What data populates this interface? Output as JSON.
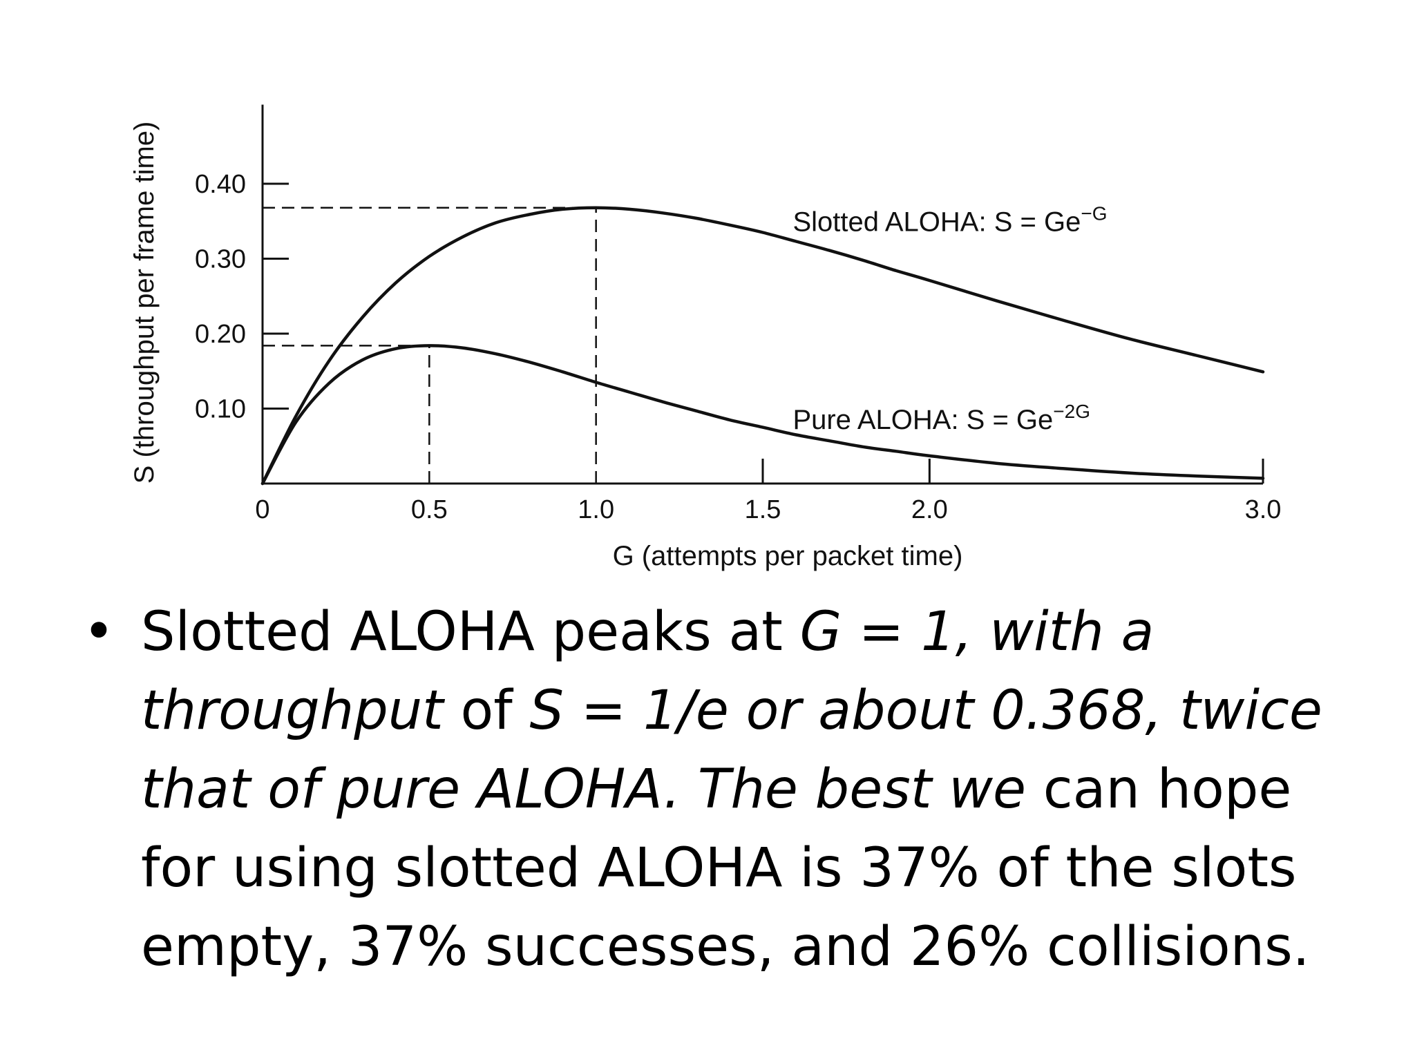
{
  "chart_data": {
    "type": "line",
    "xlabel": "G (attempts per packet time)",
    "ylabel": "S (throughput per frame time)",
    "xlim": [
      0,
      3.0
    ],
    "ylim": [
      0,
      0.5
    ],
    "x_ticks": [
      {
        "value": 0,
        "label": "0"
      },
      {
        "value": 0.5,
        "label": "0.5"
      },
      {
        "value": 1.0,
        "label": "1.0"
      },
      {
        "value": 1.5,
        "label": "1.5"
      },
      {
        "value": 2.0,
        "label": "2.0"
      },
      {
        "value": 3.0,
        "label": "3.0"
      }
    ],
    "y_ticks": [
      {
        "value": 0.1,
        "label": "0.10"
      },
      {
        "value": 0.2,
        "label": "0.20"
      },
      {
        "value": 0.3,
        "label": "0.30"
      },
      {
        "value": 0.4,
        "label": "0.40"
      }
    ],
    "grid": false,
    "series": [
      {
        "name": "Slotted ALOHA",
        "formula": "S = Ge^-G",
        "x": [
          0,
          0.1,
          0.2,
          0.3,
          0.4,
          0.5,
          0.6,
          0.7,
          0.8,
          0.9,
          1.0,
          1.1,
          1.2,
          1.3,
          1.4,
          1.5,
          1.6,
          1.7,
          1.8,
          1.9,
          2.0,
          2.2,
          2.4,
          2.6,
          2.8,
          3.0
        ],
        "values": [
          0,
          0.09,
          0.164,
          0.222,
          0.268,
          0.303,
          0.329,
          0.348,
          0.359,
          0.366,
          0.368,
          0.366,
          0.361,
          0.354,
          0.345,
          0.335,
          0.323,
          0.311,
          0.298,
          0.284,
          0.271,
          0.244,
          0.218,
          0.193,
          0.171,
          0.149
        ]
      },
      {
        "name": "Pure ALOHA",
        "formula": "S = Ge^-2G",
        "x": [
          0,
          0.1,
          0.2,
          0.3,
          0.4,
          0.5,
          0.6,
          0.7,
          0.8,
          0.9,
          1.0,
          1.1,
          1.2,
          1.3,
          1.4,
          1.5,
          1.6,
          1.7,
          1.8,
          1.9,
          2.0,
          2.2,
          2.4,
          2.6,
          2.8,
          3.0
        ],
        "values": [
          0,
          0.082,
          0.134,
          0.165,
          0.18,
          0.184,
          0.181,
          0.173,
          0.162,
          0.149,
          0.135,
          0.122,
          0.109,
          0.097,
          0.085,
          0.075,
          0.065,
          0.057,
          0.049,
          0.043,
          0.037,
          0.027,
          0.02,
          0.014,
          0.01,
          0.007
        ]
      }
    ],
    "annotations": [
      {
        "label": "Slotted ALOHA: S = Ge",
        "sup": "−G"
      },
      {
        "label": "Pure ALOHA: S = Ge",
        "sup": "−2G"
      }
    ],
    "reference_lines": [
      {
        "type": "horizontal",
        "y": 0.368,
        "x_from": 0,
        "x_to": 1.0
      },
      {
        "type": "vertical",
        "x": 1.0,
        "y_from": 0,
        "y_to": 0.368
      },
      {
        "type": "horizontal",
        "y": 0.184,
        "x_from": 0,
        "x_to": 0.5
      },
      {
        "type": "vertical",
        "x": 0.5,
        "y_from": 0,
        "y_to": 0.184
      }
    ]
  },
  "bullet": {
    "symbol": "•",
    "parts": [
      {
        "text": "Slotted ALOHA peaks at ",
        "italic": false
      },
      {
        "text": "G = 1, with a throughput",
        "italic": true
      },
      {
        "text": " of ",
        "italic": false
      },
      {
        "text": "S = 1/e or about 0.368, twice that of pure ALOHA. The best we",
        "italic": true
      },
      {
        "text": " can hope for using slotted ALOHA is 37% of the slots empty, 37% successes, and 26% collisions.",
        "italic": false
      }
    ]
  }
}
